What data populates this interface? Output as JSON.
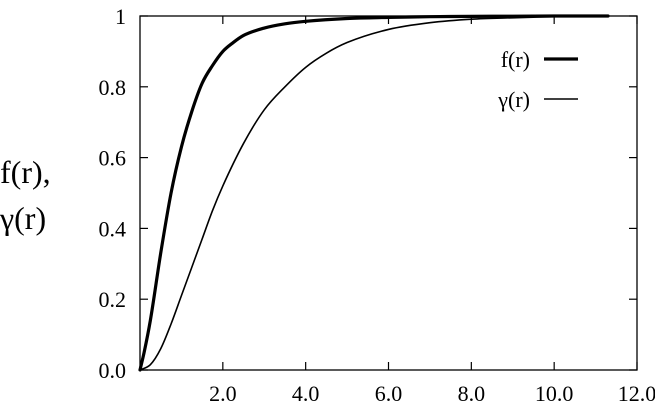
{
  "chart_data": {
    "type": "line",
    "title": "",
    "xlabel": "",
    "ylabel": [
      "f(r),",
      "γ(r)"
    ],
    "xlim": [
      0,
      12
    ],
    "ylim": [
      0,
      1
    ],
    "x_ticks": [
      2,
      4,
      6,
      8,
      10,
      12
    ],
    "x_tick_labels": [
      "2.0",
      "4.0",
      "6.0",
      "8.0",
      "10.0",
      "12.0"
    ],
    "y_ticks": [
      0,
      0.2,
      0.4,
      0.6,
      0.8,
      1
    ],
    "y_tick_labels": [
      "0.0",
      "0.2",
      "0.4",
      "0.6",
      "0.8",
      "1"
    ],
    "grid": false,
    "legend": {
      "position": "top-right"
    },
    "series": [
      {
        "name": "f(r)",
        "style": "thick",
        "color": "#000000",
        "x": [
          0,
          0.1,
          0.25,
          0.5,
          0.75,
          1,
          1.25,
          1.5,
          1.75,
          2,
          2.25,
          2.5,
          3,
          3.5,
          4,
          5,
          6,
          7,
          8,
          9,
          10,
          11.3
        ],
        "y": [
          0,
          0.05,
          0.14,
          0.33,
          0.5,
          0.63,
          0.73,
          0.81,
          0.86,
          0.9,
          0.925,
          0.945,
          0.966,
          0.978,
          0.985,
          0.993,
          0.996,
          0.998,
          0.999,
          0.9995,
          1.0,
          1.0
        ]
      },
      {
        "name": "γ(r)",
        "style": "thin",
        "color": "#000000",
        "x": [
          0,
          0.25,
          0.5,
          0.75,
          1,
          1.25,
          1.5,
          1.75,
          2,
          2.5,
          3,
          3.5,
          4,
          4.5,
          5,
          6,
          7,
          8,
          9,
          10,
          11.3
        ],
        "y": [
          0,
          0.015,
          0.06,
          0.13,
          0.21,
          0.29,
          0.37,
          0.45,
          0.52,
          0.64,
          0.735,
          0.8,
          0.855,
          0.895,
          0.925,
          0.962,
          0.981,
          0.991,
          0.995,
          0.998,
          1.0
        ]
      }
    ]
  }
}
